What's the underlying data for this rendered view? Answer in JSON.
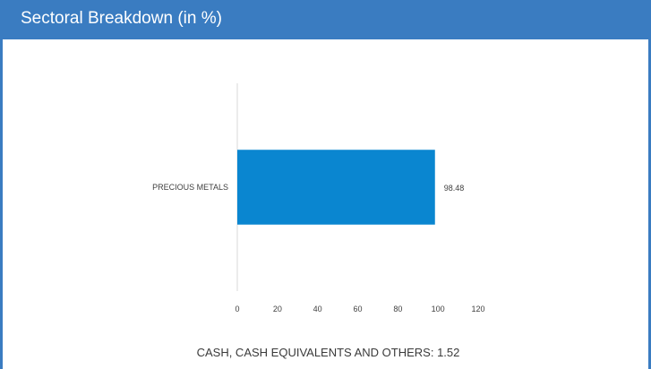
{
  "header": {
    "title": "Sectoral Breakdown (in %)"
  },
  "footer": {
    "note": "CASH, CASH EQUIVALENTS AND OTHERS: 1.52"
  },
  "colors": {
    "header": "#3a7cc1",
    "bar": "#0a86d0"
  },
  "chart_data": {
    "type": "bar",
    "orientation": "horizontal",
    "title": "",
    "xlabel": "",
    "ylabel": "",
    "categories": [
      "PRECIOUS METALS"
    ],
    "values": [
      98.48
    ],
    "data_labels": [
      "98.48"
    ],
    "xlim": [
      0,
      120
    ],
    "xticks": [
      "0",
      "20",
      "40",
      "60",
      "80",
      "100",
      "120"
    ],
    "grid": false,
    "legend": "none"
  }
}
